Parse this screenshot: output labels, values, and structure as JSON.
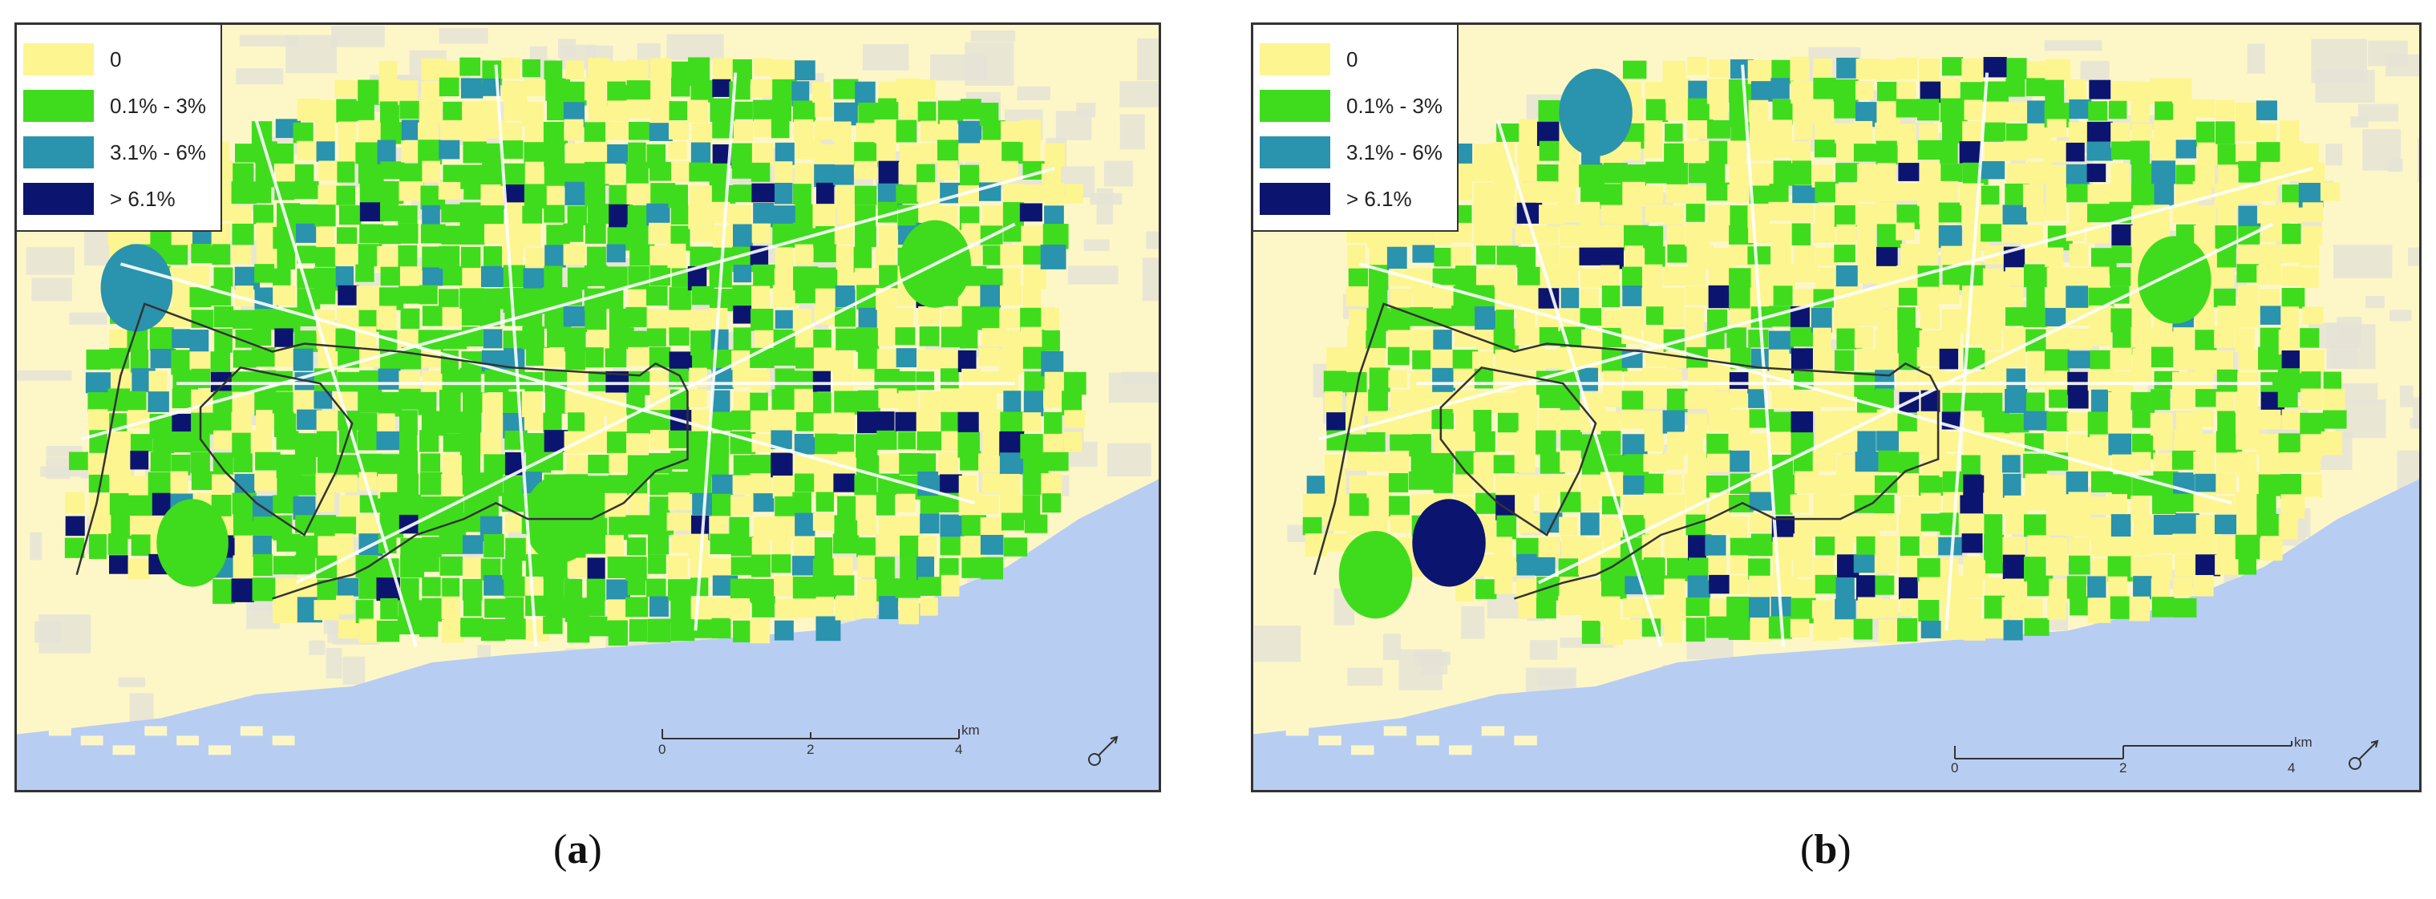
{
  "legend": {
    "items": [
      {
        "label": "0",
        "color": "#fdf58f"
      },
      {
        "label": "0.1% - 3%",
        "color": "#3fdc1e"
      },
      {
        "label": "3.1% - 6%",
        "color": "#2a93ad"
      },
      {
        "label": "> 6.1%",
        "color": "#0b1570"
      }
    ]
  },
  "colors": {
    "background": "#fdf7c8",
    "gray_blocks": "#e5e3d6",
    "sea": "#b8cdf2",
    "roads": "#ffffff",
    "district_outline": "#333333"
  },
  "panels": [
    {
      "caption_letter": "a",
      "scale": {
        "ticks": [
          "0",
          "2",
          "4"
        ],
        "unit": "km"
      },
      "north_arrow": "north-arrow-icon"
    },
    {
      "caption_letter": "b",
      "scale": {
        "ticks": [
          "0",
          "2",
          "4"
        ],
        "unit": "km"
      },
      "north_arrow": "north-arrow-icon"
    }
  ]
}
